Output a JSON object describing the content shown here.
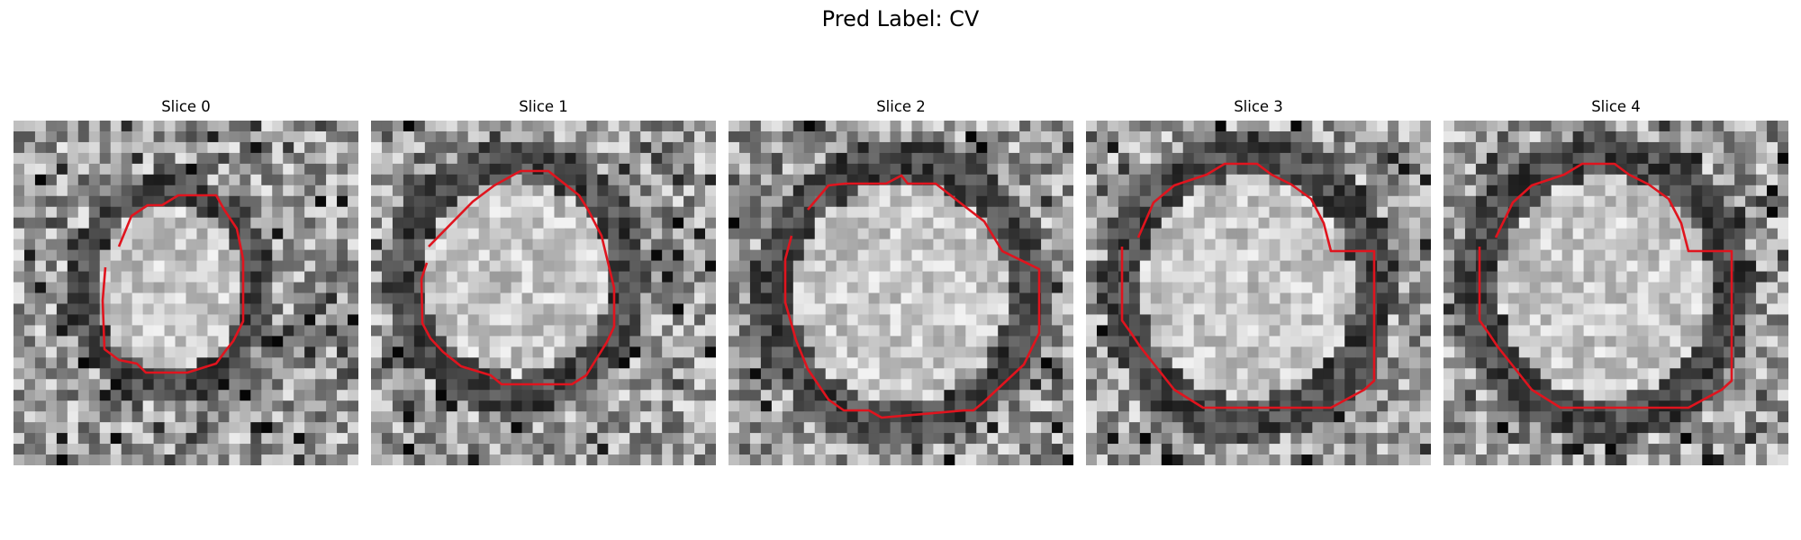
{
  "figure": {
    "suptitle": "Pred Label: CV"
  },
  "panels": [
    {
      "title": "Slice 0"
    },
    {
      "title": "Slice 1"
    },
    {
      "title": "Slice 2"
    },
    {
      "title": "Slice 3"
    },
    {
      "title": "Slice 4"
    }
  ],
  "colors": {
    "contour": "#e0141e",
    "background": "#ffffff"
  }
}
